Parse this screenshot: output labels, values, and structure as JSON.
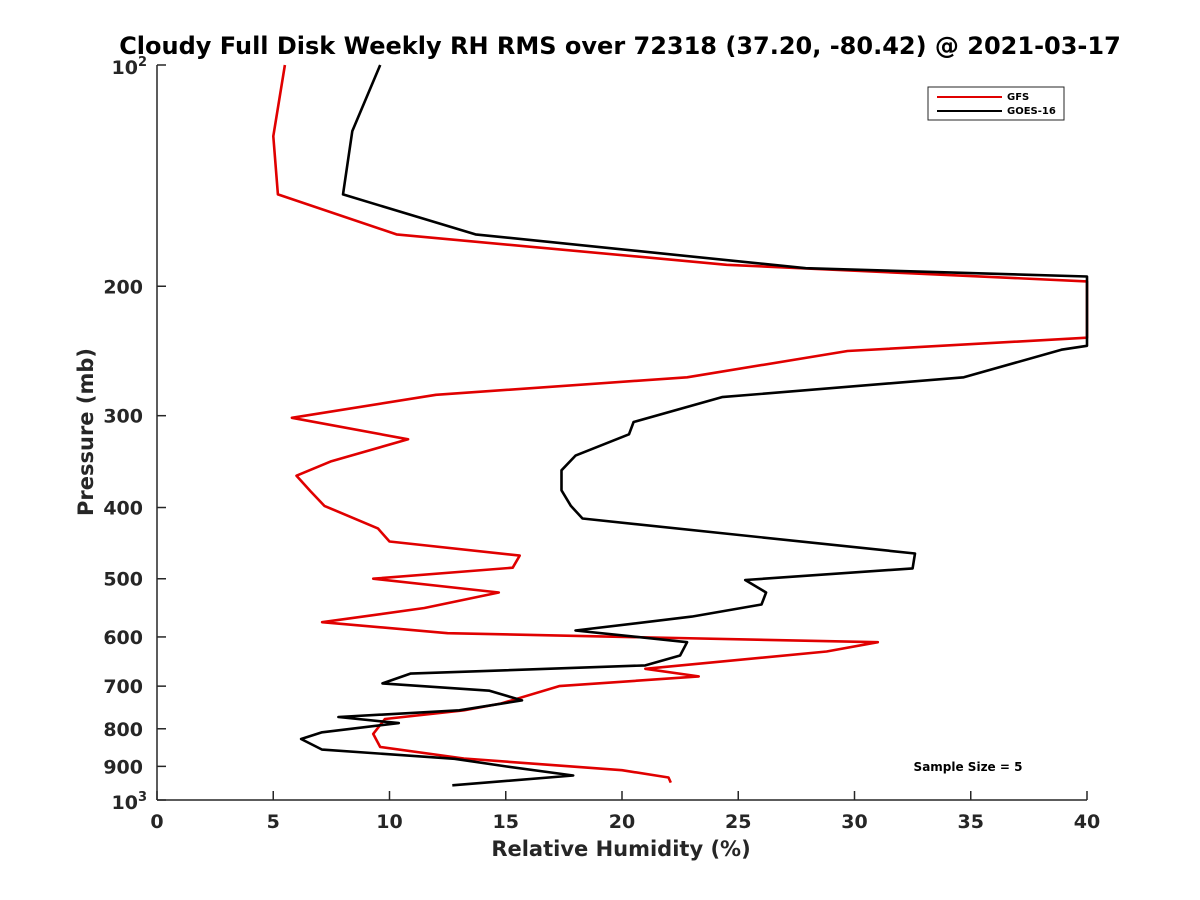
{
  "chart_data": {
    "type": "line",
    "title": "Cloudy Full Disk Weekly RH RMS over 72318 (37.20, -80.42) @ 2021-03-17",
    "xlabel": "Relative Humidity (%)",
    "ylabel": "Pressure (mb)",
    "xlim": [
      0,
      40
    ],
    "ylim": [
      100,
      1000
    ],
    "yscale": "log",
    "y_reversed": true,
    "x_ticks": [
      "0",
      "5",
      "10",
      "15",
      "20",
      "25",
      "30",
      "35",
      "40"
    ],
    "y_ticks": [
      {
        "value": 100,
        "label": "10",
        "sup": "2"
      },
      {
        "value": 200,
        "label": "200"
      },
      {
        "value": 300,
        "label": "300"
      },
      {
        "value": 400,
        "label": "400"
      },
      {
        "value": 500,
        "label": "500"
      },
      {
        "value": 600,
        "label": "600"
      },
      {
        "value": 700,
        "label": "700"
      },
      {
        "value": 800,
        "label": "800"
      },
      {
        "value": 900,
        "label": "900"
      },
      {
        "value": 1000,
        "label": "10",
        "sup": "3"
      }
    ],
    "legend_position": "top-right",
    "annotation": "Sample Size = 5",
    "series": [
      {
        "name": "GFS",
        "color": "#e00000",
        "points": [
          [
            5.5,
            100
          ],
          [
            5.0,
            125
          ],
          [
            5.2,
            150
          ],
          [
            10.3,
            170
          ],
          [
            24.5,
            187
          ],
          [
            40.0,
            197
          ],
          [
            40.0,
            235
          ],
          [
            29.7,
            245
          ],
          [
            22.8,
            266
          ],
          [
            12.0,
            281
          ],
          [
            5.8,
            302
          ],
          [
            10.8,
            323
          ],
          [
            7.5,
            346
          ],
          [
            6.0,
            362
          ],
          [
            6.6,
            380
          ],
          [
            7.2,
            398
          ],
          [
            9.5,
            427
          ],
          [
            10.0,
            445
          ],
          [
            15.6,
            465
          ],
          [
            15.3,
            483
          ],
          [
            9.3,
            500
          ],
          [
            14.7,
            522
          ],
          [
            11.5,
            548
          ],
          [
            7.1,
            573
          ],
          [
            12.5,
            593
          ],
          [
            31.0,
            610
          ],
          [
            28.8,
            628
          ],
          [
            21.0,
            663
          ],
          [
            23.3,
            679
          ],
          [
            17.3,
            700
          ],
          [
            14.8,
            739
          ],
          [
            13.2,
            755
          ],
          [
            9.8,
            776
          ],
          [
            9.3,
            813
          ],
          [
            9.6,
            847
          ],
          [
            13.2,
            878
          ],
          [
            20.0,
            911
          ],
          [
            22.0,
            932
          ],
          [
            22.1,
            947
          ]
        ]
      },
      {
        "name": "GOES-16",
        "color": "#000000",
        "points": [
          [
            9.6,
            100
          ],
          [
            8.4,
            123
          ],
          [
            8.0,
            150
          ],
          [
            13.7,
            170
          ],
          [
            27.9,
            189
          ],
          [
            40.0,
            194
          ],
          [
            40.0,
            241
          ],
          [
            38.9,
            244
          ],
          [
            34.7,
            266
          ],
          [
            24.3,
            283
          ],
          [
            20.5,
            306
          ],
          [
            20.3,
            318
          ],
          [
            18.0,
            340
          ],
          [
            17.4,
            356
          ],
          [
            17.4,
            379
          ],
          [
            17.8,
            398
          ],
          [
            18.3,
            414
          ],
          [
            32.6,
            462
          ],
          [
            32.5,
            484
          ],
          [
            25.3,
            502
          ],
          [
            26.2,
            522
          ],
          [
            26.0,
            542
          ],
          [
            23.0,
            563
          ],
          [
            18.0,
            588
          ],
          [
            22.8,
            610
          ],
          [
            22.5,
            636
          ],
          [
            21.0,
            656
          ],
          [
            10.9,
            673
          ],
          [
            9.7,
            694
          ],
          [
            14.3,
            710
          ],
          [
            15.7,
            732
          ],
          [
            13.0,
            755
          ],
          [
            7.8,
            771
          ],
          [
            10.4,
            786
          ],
          [
            7.1,
            809
          ],
          [
            6.2,
            826
          ],
          [
            7.1,
            854
          ],
          [
            12.8,
            879
          ],
          [
            15.0,
            900
          ],
          [
            17.9,
            926
          ],
          [
            12.7,
            955
          ]
        ]
      }
    ]
  }
}
